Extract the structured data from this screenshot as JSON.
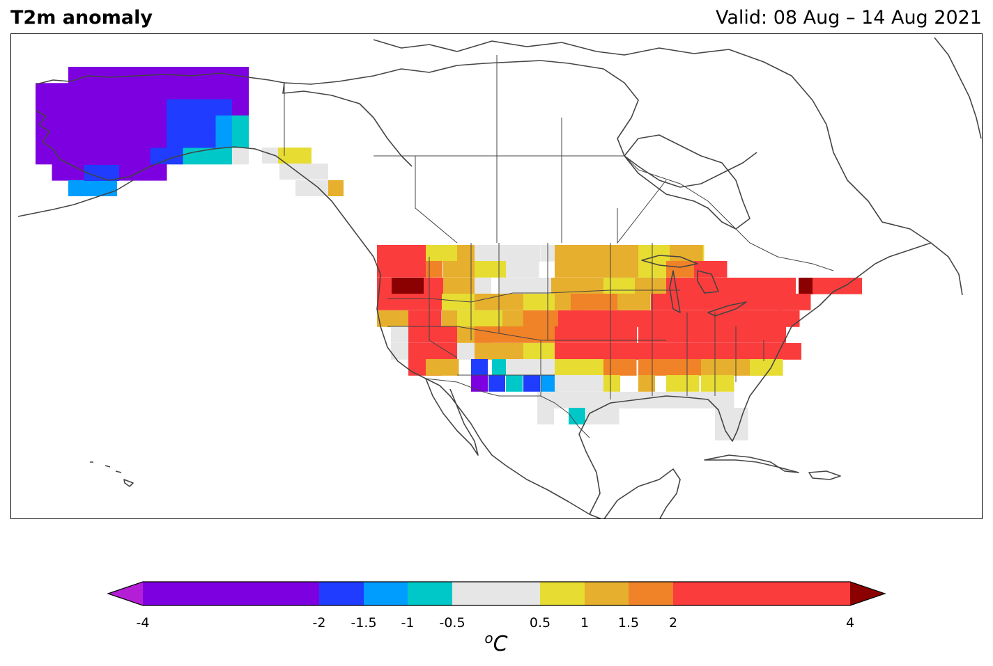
{
  "header": {
    "title": "T2m anomaly",
    "valid": "Valid: 08 Aug – 14 Aug 2021"
  },
  "colorbar": {
    "unit_sup": "o",
    "unit_main": "C",
    "ticks": [
      "-4",
      "-2",
      "-1.5",
      "-1",
      "-0.5",
      "0.5",
      "1",
      "1.5",
      "2",
      "4"
    ],
    "levels": [
      -4,
      -2,
      -1.5,
      -1,
      -0.5,
      0.5,
      1,
      1.5,
      2,
      4
    ],
    "colors": {
      "under": "#b31ed6",
      "bins": [
        "#7d00e0",
        "#1f3cff",
        "#009dff",
        "#00c8c8",
        "#e6e6e6",
        "#e6dc32",
        "#e6af2d",
        "#f08228",
        "#fa3c3c"
      ],
      "over": "#8b0000"
    }
  },
  "map": {
    "region": "North America",
    "projection": "plate carree",
    "coastline_color": "#444444",
    "anomaly_classes": {
      "alaska": "below -2 °C (purple), locally -2 to -1 °C (blue/cyan)",
      "western_us": "+2 to +4 °C (red), locally above 4 °C (dark red) in Oregon",
      "southwest_us": "-2 to -0.5 °C (purple/blue/cyan) in New Mexico",
      "central_us": "+0.5 to +2 °C (yellow/orange)",
      "eastern_us": "+2 to +4 °C (red), locally above 4 °C (dark red) in Maine",
      "gulf_coast": "-0.5 to +0.5 °C (grey)"
    }
  }
}
